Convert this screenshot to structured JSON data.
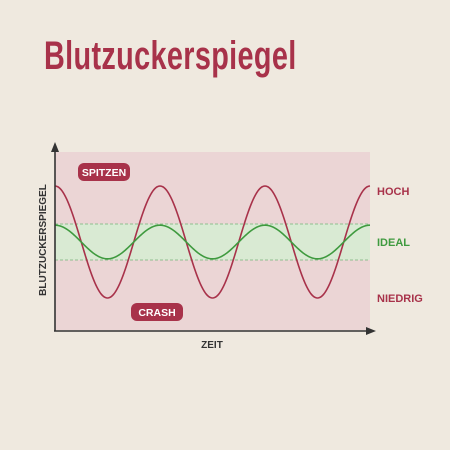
{
  "title": "Blutzuckerspiegel",
  "colors": {
    "accent": "#a8324a",
    "ideal": "#3f9a3f",
    "background": "#efe9df",
    "plot_area": "#ebd5d5",
    "ideal_band": "#d9ead3",
    "axis": "#333333"
  },
  "chart_data": {
    "type": "line",
    "xlabel": "ZEIT",
    "ylabel": "BLUTZUCKERSPIEGEL",
    "zones": {
      "high": "HOCH",
      "ideal": "IDEAL",
      "low": "NIEDRIG"
    },
    "annotations": {
      "peaks": "SPITZEN",
      "crash": "CRASH"
    },
    "ideal_band": [
      -0.33,
      0.33
    ],
    "series": [
      {
        "shape": "large-oscillation",
        "color": "#a8324a",
        "amplitude": 1.0,
        "cycles": 3
      },
      {
        "shape": "small-oscillation",
        "color": "#3f9a3f",
        "amplitude": 0.3,
        "cycles": 3
      }
    ],
    "grid": false,
    "axis_ticks": false
  }
}
